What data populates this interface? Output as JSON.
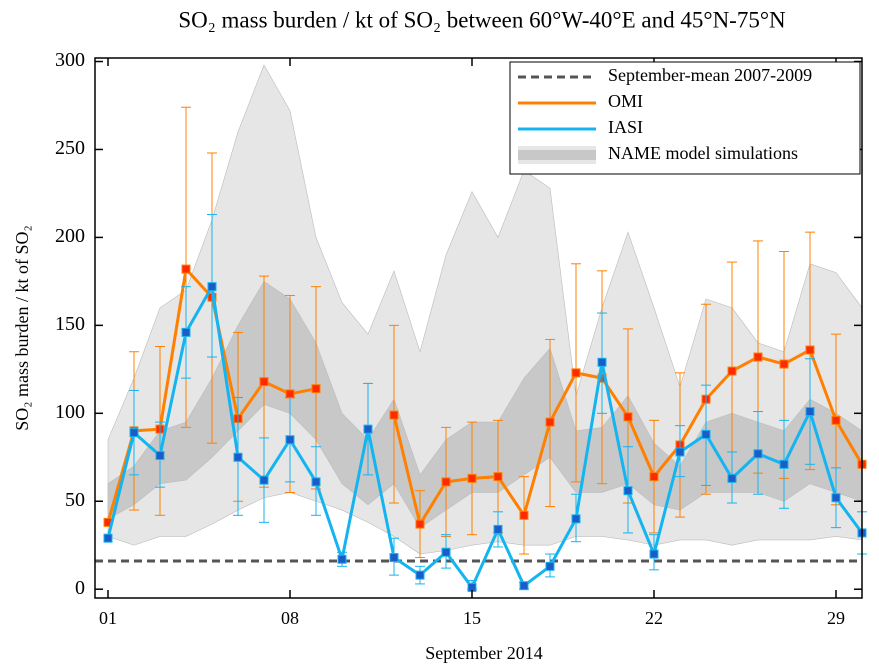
{
  "chart_data": {
    "type": "line",
    "title": "SO₂ mass burden / kt of SO₂ between 60°W-40°E and 45°N-75°N",
    "x_label": "September 2014",
    "y_label": "SO₂ mass burden / kt of SO₂",
    "x": [
      1,
      2,
      3,
      4,
      5,
      6,
      7,
      8,
      9,
      10,
      11,
      12,
      13,
      14,
      15,
      16,
      17,
      18,
      19,
      20,
      21,
      22,
      23,
      24,
      25,
      26,
      27,
      28,
      29,
      30
    ],
    "xlim": [
      0.5,
      30
    ],
    "xticks": [
      {
        "value": 1,
        "label": "01"
      },
      {
        "value": 8,
        "label": "08"
      },
      {
        "value": 15,
        "label": "15"
      },
      {
        "value": 22,
        "label": "22"
      },
      {
        "value": 29,
        "label": "29"
      }
    ],
    "ylim": [
      -5,
      302
    ],
    "yticks": [
      0,
      50,
      100,
      150,
      200,
      250,
      300
    ],
    "legend": "upper right",
    "reference": {
      "name": "September-mean 2007-2009",
      "value": 16,
      "color": "#555555"
    },
    "band": {
      "name": "NAME model simulations",
      "outer_color": "#e6e6e6",
      "inner_color": "#c8c8c8",
      "outer_upper": [
        85,
        120,
        160,
        170,
        210,
        260,
        298,
        272,
        200,
        163,
        145,
        181,
        135,
        190,
        226,
        200,
        238,
        228,
        110,
        160,
        203,
        160,
        115,
        165,
        160,
        140,
        135,
        185,
        180,
        160
      ],
      "outer_lower": [
        30,
        25,
        30,
        30,
        37,
        45,
        52,
        55,
        50,
        45,
        38,
        30,
        20,
        22,
        25,
        27,
        25,
        25,
        30,
        30,
        28,
        25,
        28,
        28,
        25,
        28,
        28,
        28,
        30,
        28
      ],
      "inner_upper": [
        60,
        70,
        90,
        95,
        120,
        150,
        175,
        165,
        140,
        100,
        85,
        108,
        65,
        85,
        95,
        95,
        120,
        137,
        90,
        92,
        110,
        83,
        70,
        95,
        100,
        95,
        90,
        108,
        100,
        90
      ],
      "inner_lower": [
        40,
        48,
        60,
        62,
        75,
        90,
        105,
        100,
        85,
        60,
        48,
        60,
        35,
        45,
        55,
        55,
        65,
        75,
        55,
        55,
        60,
        48,
        45,
        55,
        55,
        55,
        50,
        60,
        55,
        50
      ]
    },
    "series": [
      {
        "name": "OMI",
        "color": "#ff8000",
        "marker_color": "#ff2a00",
        "values": [
          38,
          90,
          91,
          182,
          166,
          97,
          118,
          111,
          114,
          null,
          null,
          99,
          37,
          61,
          63,
          64,
          42,
          95,
          123,
          120,
          98,
          64,
          82,
          108,
          124,
          132,
          128,
          136,
          96,
          71
        ],
        "upper": [
          null,
          135,
          138,
          274,
          248,
          146,
          178,
          167,
          172,
          null,
          null,
          150,
          56,
          92,
          95,
          96,
          64,
          142,
          185,
          181,
          148,
          96,
          123,
          162,
          186,
          198,
          192,
          203,
          145,
          null
        ],
        "lower": [
          null,
          45,
          42,
          92,
          83,
          50,
          58,
          55,
          57,
          null,
          null,
          49,
          18,
          30,
          31,
          32,
          20,
          47,
          61,
          60,
          49,
          32,
          41,
          54,
          62,
          66,
          63,
          68,
          48,
          null
        ]
      },
      {
        "name": "IASI",
        "color": "#14b4f0",
        "marker_color": "#1a5cc8",
        "values": [
          29,
          89,
          76,
          146,
          172,
          75,
          62,
          85,
          61,
          17,
          91,
          18,
          8,
          21,
          1,
          34,
          2,
          13,
          40,
          129,
          56,
          20,
          78,
          88,
          63,
          77,
          71,
          101,
          52,
          32
        ],
        "upper": [
          null,
          113,
          95,
          172,
          213,
          109,
          86,
          109,
          81,
          21,
          117,
          29,
          13,
          31,
          5,
          44,
          4,
          20,
          54,
          157,
          81,
          31,
          93,
          116,
          78,
          101,
          96,
          131,
          69,
          44
        ],
        "lower": [
          null,
          65,
          58,
          120,
          132,
          42,
          38,
          61,
          42,
          13,
          65,
          8,
          3,
          12,
          0,
          24,
          0,
          7,
          27,
          100,
          32,
          11,
          64,
          59,
          49,
          54,
          46,
          71,
          35,
          20
        ]
      }
    ]
  }
}
